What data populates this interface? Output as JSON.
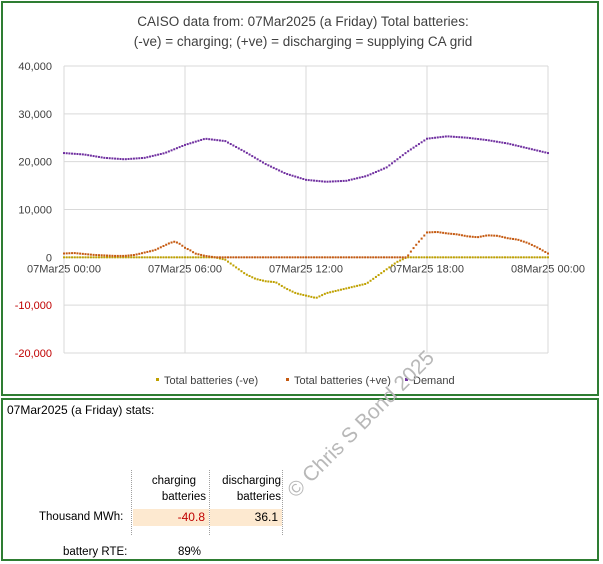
{
  "chart_data": {
    "type": "scatter",
    "title_line1": "CAISO data from:  07Mar2025  (a Friday)   Total batteries:",
    "title_line2": "(-ve) = charging;   (+ve) = discharging = supplying CA grid",
    "y_ticks": [
      "40,000",
      "30,000",
      "20,000",
      "10,000",
      "0",
      "-10,000",
      "-20,000"
    ],
    "y_tick_values": [
      40000,
      30000,
      20000,
      10000,
      0,
      -10000,
      -20000
    ],
    "ylim": [
      -20000,
      40000
    ],
    "x_ticks": [
      "07Mar25 00:00",
      "07Mar25 06:00",
      "07Mar25 12:00",
      "07Mar25 18:00",
      "08Mar25 00:00"
    ],
    "x_tick_hours": [
      0,
      6,
      12,
      18,
      24
    ],
    "xlim_hours": [
      0,
      24
    ],
    "grid": true,
    "legend_position": "bottom",
    "series": [
      {
        "name": "Total batteries (-ve)",
        "color": "#bfa100",
        "hours": [
          0,
          7.5,
          8.0,
          8.5,
          9.0,
          9.5,
          10.0,
          10.5,
          11.0,
          11.5,
          12.0,
          12.5,
          13.0,
          13.5,
          14.0,
          14.5,
          15.0,
          15.5,
          16.0,
          16.5,
          17.0,
          24
        ],
        "values": [
          0,
          0,
          -500,
          -2000,
          -3500,
          -4500,
          -5000,
          -5200,
          -6500,
          -7500,
          -8000,
          -8500,
          -7500,
          -7000,
          -6500,
          -6000,
          -5500,
          -4000,
          -2500,
          -1000,
          0,
          0
        ]
      },
      {
        "name": "Total batteries (+ve)",
        "color": "#c55a11",
        "hours": [
          0,
          0.5,
          1.0,
          1.5,
          2.0,
          2.5,
          3.0,
          3.5,
          4.0,
          4.5,
          5.0,
          5.25,
          5.5,
          5.75,
          6.0,
          6.25,
          6.5,
          7.0,
          7.5,
          8.0,
          17.0,
          17.25,
          17.5,
          17.75,
          18.0,
          18.5,
          19.0,
          19.5,
          20.0,
          20.5,
          21.0,
          21.5,
          22.0,
          22.5,
          23.0,
          23.5,
          24.0
        ],
        "values": [
          800,
          900,
          700,
          500,
          400,
          300,
          300,
          500,
          1000,
          1500,
          2500,
          3000,
          3300,
          2800,
          2000,
          1500,
          800,
          300,
          0,
          0,
          0,
          1500,
          2800,
          4000,
          5200,
          5300,
          5000,
          4800,
          4400,
          4200,
          4600,
          4500,
          4000,
          3700,
          3000,
          2000,
          800
        ]
      },
      {
        "name": "Demand",
        "color": "#7030a0",
        "hours": [
          0,
          1,
          2,
          3,
          4,
          5,
          6,
          7,
          8,
          9,
          10,
          11,
          12,
          13,
          14,
          15,
          16,
          17,
          18,
          19,
          20,
          21,
          22,
          23,
          24
        ],
        "values": [
          21800,
          21500,
          20800,
          20500,
          20800,
          21800,
          23500,
          24800,
          24300,
          22000,
          19500,
          17500,
          16200,
          15800,
          16000,
          17000,
          18800,
          22000,
          24800,
          25300,
          25000,
          24500,
          23800,
          22800,
          21800
        ]
      }
    ]
  },
  "stats": {
    "heading": "07Mar2025  (a Friday) stats:",
    "col1_header_line1": "charging",
    "col1_header_line2": "batteries",
    "col2_header_line1": "discharging",
    "col2_header_line2": "batteries",
    "row_label": "Thousand MWh:",
    "charging_value": "-40.8",
    "discharging_value": "36.1",
    "rte_label": "battery RTE:",
    "rte_value": "89%",
    "watermark": "© Chris S Bond  2025"
  }
}
